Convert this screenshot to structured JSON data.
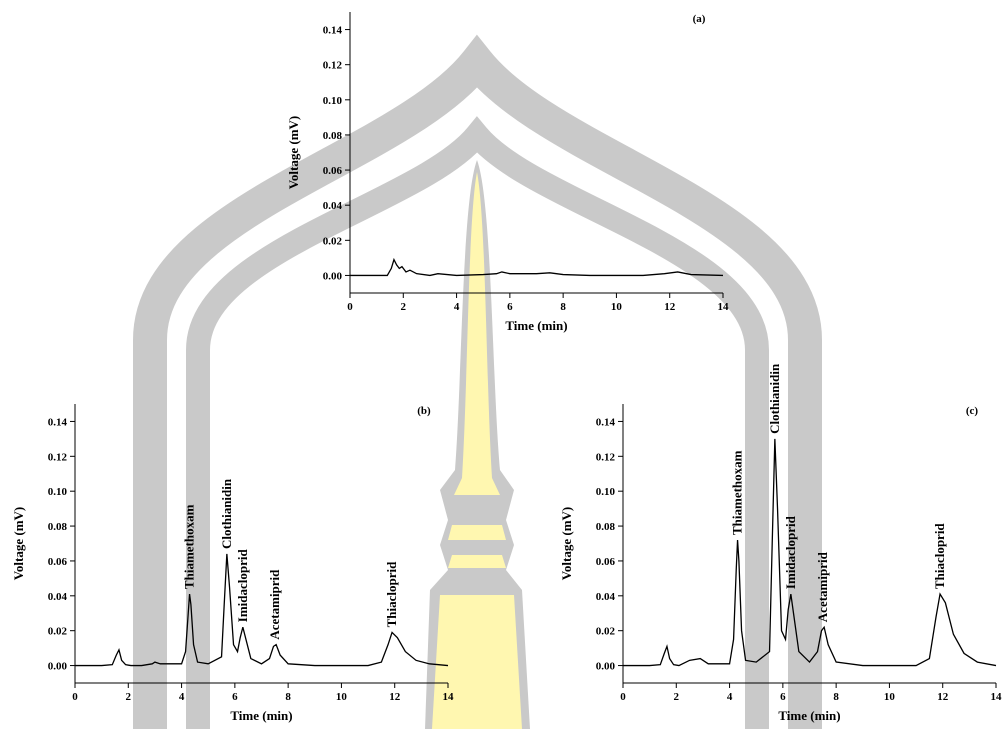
{
  "chart_data": [
    {
      "type": "line",
      "title": "(a)",
      "xlabel": "Time (min)",
      "ylabel": "Voltage (mV)",
      "color": "#000000",
      "xlim": [
        0,
        14
      ],
      "ylim": [
        -0.01,
        0.15
      ],
      "xticks": [
        0,
        2,
        4,
        6,
        8,
        10,
        12,
        14
      ],
      "yticks": [
        {
          "value": 0,
          "label": "0.00"
        },
        {
          "value": 0.02,
          "label": "0.02"
        },
        {
          "value": 0.04,
          "label": "0.04"
        },
        {
          "value": 0.06,
          "label": "0.06"
        },
        {
          "value": 0.08,
          "label": "0.08"
        },
        {
          "value": 0.1,
          "label": "0.10"
        },
        {
          "value": 0.12,
          "label": "0.12"
        },
        {
          "value": 0.14,
          "label": "0.14"
        }
      ],
      "x": [
        0,
        1.4,
        1.55,
        1.65,
        1.75,
        1.85,
        1.95,
        2.1,
        2.25,
        2.5,
        3,
        3.3,
        4,
        5,
        5.5,
        5.7,
        6,
        7,
        7.5,
        8,
        9,
        11,
        11.8,
        12.3,
        12.8,
        14
      ],
      "values": [
        0,
        0,
        0.004,
        0.009,
        0.006,
        0.004,
        0.005,
        0.002,
        0.003,
        0.001,
        0,
        0.001,
        0,
        0.0005,
        0.001,
        0.002,
        0.001,
        0.001,
        0.0015,
        0.0005,
        0,
        0,
        0.001,
        0.002,
        0.0005,
        0
      ],
      "annotations": []
    },
    {
      "type": "line",
      "title": "(b)",
      "xlabel": "Time (min)",
      "ylabel": "Voltage (mV)",
      "color": "#000000",
      "xlim": [
        0,
        14
      ],
      "ylim": [
        -0.01,
        0.15
      ],
      "xticks": [
        0,
        2,
        4,
        6,
        8,
        10,
        12,
        14
      ],
      "yticks": [
        {
          "value": 0,
          "label": "0.00"
        },
        {
          "value": 0.02,
          "label": "0.02"
        },
        {
          "value": 0.04,
          "label": "0.04"
        },
        {
          "value": 0.06,
          "label": "0.06"
        },
        {
          "value": 0.08,
          "label": "0.08"
        },
        {
          "value": 0.1,
          "label": "0.10"
        },
        {
          "value": 0.12,
          "label": "0.12"
        },
        {
          "value": 0.14,
          "label": "0.14"
        }
      ],
      "x": [
        0,
        1,
        1.4,
        1.55,
        1.65,
        1.75,
        1.9,
        2.1,
        2.5,
        2.9,
        3.0,
        3.2,
        4.0,
        4.15,
        4.25,
        4.3,
        4.35,
        4.45,
        4.6,
        5.0,
        5.5,
        5.6,
        5.7,
        5.8,
        5.95,
        6.1,
        6.2,
        6.3,
        6.4,
        6.6,
        7.0,
        7.3,
        7.45,
        7.55,
        7.7,
        8.0,
        9,
        10,
        11,
        11.5,
        11.75,
        11.9,
        12.1,
        12.4,
        12.8,
        13.3,
        14
      ],
      "values": [
        0,
        0,
        0.0005,
        0.006,
        0.009,
        0.003,
        0.0005,
        0,
        0,
        0.001,
        0.002,
        0.001,
        0.001,
        0.008,
        0.03,
        0.041,
        0.035,
        0.012,
        0.002,
        0.001,
        0.005,
        0.035,
        0.064,
        0.045,
        0.012,
        0.008,
        0.016,
        0.022,
        0.016,
        0.004,
        0.001,
        0.004,
        0.011,
        0.012,
        0.006,
        0.001,
        0,
        0,
        0,
        0.002,
        0.012,
        0.019,
        0.016,
        0.008,
        0.003,
        0.001,
        0
      ],
      "annotations": [
        {
          "text": "Thiamethoxam",
          "x": 4.3,
          "y": 0.041
        },
        {
          "text": "Clothianidin",
          "x": 5.7,
          "y": 0.064
        },
        {
          "text": "Imidacloprid",
          "x": 6.3,
          "y": 0.022
        },
        {
          "text": "Acetamiprid",
          "x": 7.5,
          "y": 0.012
        },
        {
          "text": "Thiacloprid",
          "x": 11.9,
          "y": 0.019
        }
      ]
    },
    {
      "type": "line",
      "title": "(c)",
      "xlabel": "Time (min)",
      "ylabel": "Voltage (mV)",
      "color": "#000000",
      "xlim": [
        0,
        14
      ],
      "ylim": [
        -0.01,
        0.15
      ],
      "xticks": [
        0,
        2,
        4,
        6,
        8,
        10,
        12,
        14
      ],
      "yticks": [
        {
          "value": 0,
          "label": "0.00"
        },
        {
          "value": 0.02,
          "label": "0.02"
        },
        {
          "value": 0.04,
          "label": "0.04"
        },
        {
          "value": 0.06,
          "label": "0.06"
        },
        {
          "value": 0.08,
          "label": "0.08"
        },
        {
          "value": 0.1,
          "label": "0.10"
        },
        {
          "value": 0.12,
          "label": "0.12"
        },
        {
          "value": 0.14,
          "label": "0.14"
        }
      ],
      "x": [
        0,
        1,
        1.4,
        1.55,
        1.65,
        1.75,
        1.9,
        2.1,
        2.5,
        2.9,
        3.0,
        3.2,
        4.0,
        4.15,
        4.25,
        4.3,
        4.35,
        4.45,
        4.6,
        5.0,
        5.5,
        5.6,
        5.7,
        5.8,
        5.95,
        6.1,
        6.2,
        6.3,
        6.4,
        6.6,
        7.0,
        7.3,
        7.45,
        7.55,
        7.7,
        8.0,
        9,
        10,
        11,
        11.5,
        11.75,
        11.9,
        12.1,
        12.4,
        12.8,
        13.3,
        14
      ],
      "values": [
        0,
        0,
        0.0005,
        0.007,
        0.011,
        0.004,
        0.0005,
        0,
        0.003,
        0.004,
        0.003,
        0.001,
        0.001,
        0.015,
        0.055,
        0.072,
        0.06,
        0.02,
        0.003,
        0.002,
        0.008,
        0.07,
        0.13,
        0.09,
        0.02,
        0.015,
        0.032,
        0.041,
        0.03,
        0.008,
        0.002,
        0.008,
        0.02,
        0.022,
        0.012,
        0.002,
        0,
        0,
        0,
        0.004,
        0.028,
        0.041,
        0.036,
        0.018,
        0.007,
        0.002,
        0
      ],
      "annotations": [
        {
          "text": "Thiamethoxam",
          "x": 4.3,
          "y": 0.072
        },
        {
          "text": "Clothianidin",
          "x": 5.7,
          "y": 0.13
        },
        {
          "text": "Imidacloprid",
          "x": 6.3,
          "y": 0.041
        },
        {
          "text": "Acetamiprid",
          "x": 7.5,
          "y": 0.022
        },
        {
          "text": "Thiacloprid",
          "x": 11.9,
          "y": 0.041
        }
      ]
    }
  ]
}
